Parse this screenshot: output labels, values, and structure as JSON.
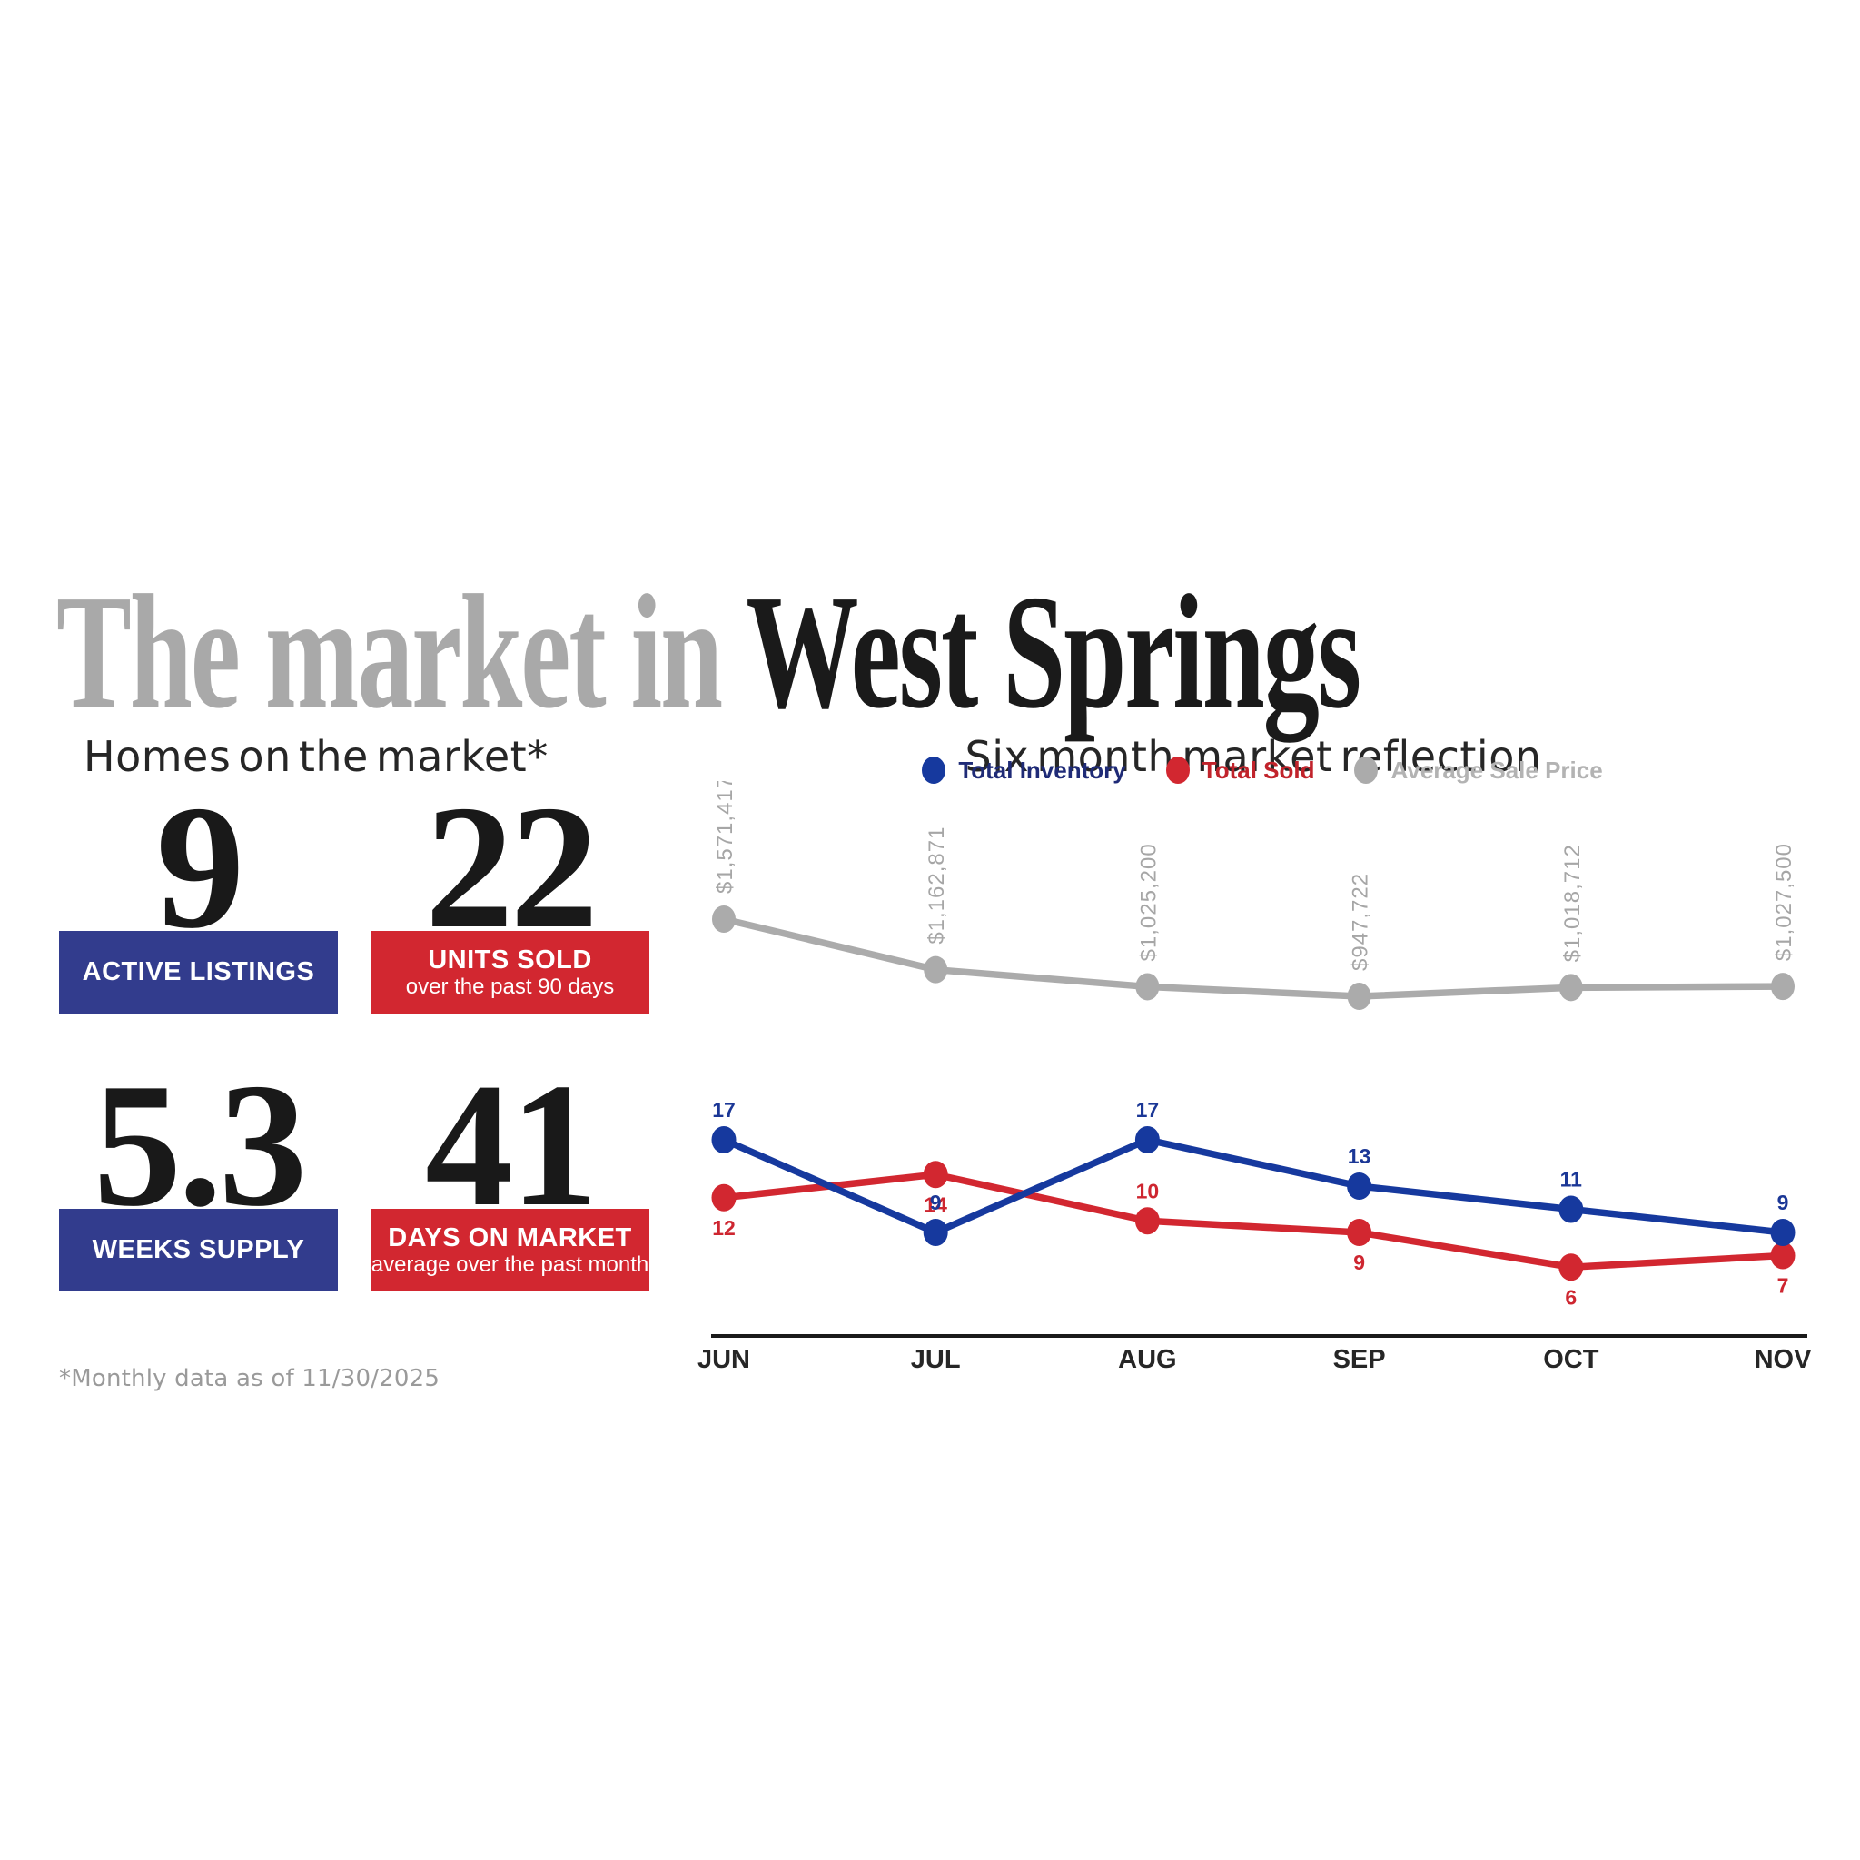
{
  "title": {
    "prefix": "The market in",
    "location": "West Springs"
  },
  "left": {
    "heading": "Homes on the market*",
    "stats": [
      {
        "value": "9",
        "label": "ACTIVE LISTINGS",
        "sublabel": "",
        "box_color": "#323C8D"
      },
      {
        "value": "22",
        "label": "UNITS SOLD",
        "sublabel": "over the past 90 days",
        "box_color": "#D22730"
      },
      {
        "value": "5.3",
        "label": "WEEKS SUPPLY",
        "sublabel": "",
        "box_color": "#323C8D"
      },
      {
        "value": "41",
        "label": "DAYS ON MARKET",
        "sublabel": "average over the past month",
        "box_color": "#D22730"
      }
    ],
    "footnote": "*Monthly data as of 11/30/2025"
  },
  "chart_data": {
    "type": "line",
    "title": "Six month market reflection",
    "categories": [
      "JUN",
      "JUL",
      "AUG",
      "SEP",
      "OCT",
      "NOV"
    ],
    "series": [
      {
        "name": "Total Inventory",
        "color": "#16399E",
        "label_color": "#1F2B77",
        "values": [
          17,
          9,
          17,
          13,
          11,
          9
        ]
      },
      {
        "name": "Total Sold",
        "color": "#D22730",
        "label_color": "#C1232B",
        "values": [
          12,
          14,
          10,
          9,
          6,
          7
        ]
      },
      {
        "name": "Average Sale Price",
        "color": "#ABABAB",
        "label_color": "#B3B3B3",
        "values": [
          1571417,
          1162871,
          1025200,
          947722,
          1018712,
          1027500
        ],
        "labels": [
          "$1,571,417",
          "$1,162,871",
          "$1,025,200",
          "$947,722",
          "$1,018,712",
          "$1,027,500"
        ]
      }
    ],
    "legend_position": "top",
    "grid": false,
    "axis": {
      "x_labels": [
        "JUN",
        "JUL",
        "AUG",
        "SEP",
        "OCT",
        "NOV"
      ],
      "y_axis_shown": false
    }
  }
}
